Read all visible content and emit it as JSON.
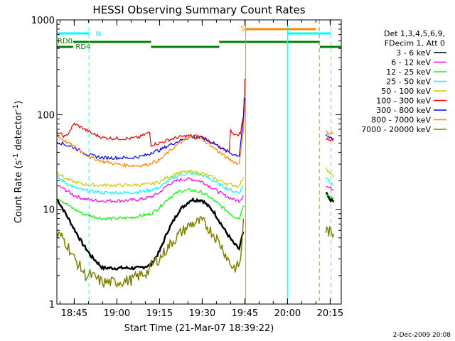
{
  "chart_data": {
    "type": "line",
    "title": "HESSI Observing Summary Count Rates",
    "xlabel": "Start Time (21-Mar-07 18:39:22)",
    "ylabel_main": "Count Rate (s",
    "ylabel_sup1": "-1",
    "ylabel_mid": " detector",
    "ylabel_sup2": "-1",
    "ylabel_end": ")",
    "x_range_min": [
      38.9,
      96.9
    ],
    "y_scale": "log",
    "ylim": [
      1,
      1000
    ],
    "x_ticks": [
      {
        "min": 45,
        "label": "18:45"
      },
      {
        "min": 60,
        "label": "19:00"
      },
      {
        "min": 75,
        "label": "19:15"
      },
      {
        "min": 90,
        "label": "19:30"
      },
      {
        "min": 105,
        "label": "19:45"
      },
      {
        "min": 120,
        "label": "20:00"
      },
      {
        "min": 135,
        "label": "20:15"
      }
    ],
    "y_ticks": [
      {
        "value": 1,
        "label": "1"
      },
      {
        "value": 10,
        "label": "10"
      },
      {
        "value": 100,
        "label": "100"
      },
      {
        "value": 1000,
        "label": "1000"
      }
    ],
    "legend": {
      "header": [
        "Det 1,3,4,5,6,9,",
        "FDecim 1, Att 0"
      ],
      "entries": [
        {
          "label": "3 - 6 keV",
          "color": "#000000"
        },
        {
          "label": "6 - 12 keV",
          "color": "#ff00ff"
        },
        {
          "label": "12 - 25 keV",
          "color": "#00ff00"
        },
        {
          "label": "25 - 50 keV",
          "color": "#00ffff"
        },
        {
          "label": "50 - 100 keV",
          "color": "#cccc00"
        },
        {
          "label": "100 - 300 keV",
          "color": "#ff0000"
        },
        {
          "label": "300 - 800 keV",
          "color": "#0000ff"
        },
        {
          "label": "800 - 7000 keV",
          "color": "#ff8800"
        },
        {
          "label": "7000 - 20000 keV",
          "color": "#808000"
        }
      ]
    },
    "flags": [
      {
        "label": "N",
        "color": "#00ffff",
        "intervals": [
          [
            38.9,
            50.2
          ],
          [
            120.0,
            135.3
          ]
        ]
      },
      {
        "label": "S",
        "color": "#ff8800",
        "intervals": [
          [
            105.3,
            130.0
          ]
        ]
      },
      {
        "label": "RD0",
        "color": "#008000",
        "intervals": [
          [
            38.9,
            44.6
          ],
          [
            135.3,
            139
          ]
        ]
      },
      {
        "label": "RD4",
        "color": "#008000",
        "intervals": [
          [
            44.6,
            72.0
          ],
          [
            72.0,
            96.0
          ],
          [
            96.0,
            131.4
          ],
          [
            131.4,
            139
          ]
        ]
      }
    ],
    "vertical_markers": [
      {
        "min": 50.2,
        "color": "#00ffff",
        "style": "dashed"
      },
      {
        "min": 105.3,
        "color": "#ff8800",
        "style": "solid"
      },
      {
        "min": 120.0,
        "color": "#00ffff",
        "style": "solid"
      },
      {
        "min": 131.2,
        "color": "#ff8800",
        "style": "dashed"
      },
      {
        "min": 135.3,
        "color": "#00ffff",
        "style": "dashed"
      }
    ],
    "series": [
      {
        "name": "3 - 6 keV",
        "color": "#000000",
        "x": [
          38.9,
          42,
          45,
          48,
          51,
          55,
          60,
          65,
          68,
          72,
          75,
          78,
          82,
          86,
          90,
          94,
          98,
          101,
          103,
          104.5
        ],
        "y": [
          13,
          9,
          6.2,
          4.3,
          3.2,
          2.4,
          2.4,
          2.4,
          2.4,
          2.6,
          3.6,
          6,
          9.8,
          12.6,
          12.5,
          9.5,
          6,
          4.4,
          3.8,
          5.8
        ]
      },
      {
        "name": "3 - 6 keV",
        "color": "#000000",
        "x": [
          133.5,
          134.5,
          135.5,
          136.3
        ],
        "y": [
          15,
          13,
          12.5,
          12
        ]
      },
      {
        "name": "6 - 12 keV",
        "color": "#ff00ff",
        "x": [
          38.9,
          42,
          45,
          48,
          51,
          55,
          60,
          65,
          68,
          72,
          75,
          78,
          82,
          86,
          90,
          94,
          98,
          101,
          103,
          104.5
        ],
        "y": [
          18,
          16,
          14,
          13,
          12.5,
          12.3,
          12.3,
          12.5,
          12.7,
          13.5,
          15,
          18.3,
          20.5,
          21,
          19.5,
          16.5,
          14,
          12.7,
          12.3,
          14
        ]
      },
      {
        "name": "6 - 12 keV",
        "color": "#ff00ff",
        "x": [
          133.5,
          134.5,
          135.5,
          136.3
        ],
        "y": [
          18,
          17,
          16.5,
          16
        ]
      },
      {
        "name": "12 - 25 keV",
        "color": "#00ff00",
        "x": [
          38.9,
          42,
          45,
          48,
          51,
          55,
          60,
          65,
          68,
          72,
          75,
          78,
          82,
          86,
          90,
          94,
          98,
          101,
          103,
          104.5
        ],
        "y": [
          13.5,
          11.5,
          10,
          9,
          8.5,
          8,
          8,
          8.2,
          8.5,
          9,
          10.5,
          13,
          15.5,
          16,
          15,
          12.5,
          10,
          8.5,
          8,
          11
        ]
      },
      {
        "name": "12 - 25 keV",
        "color": "#00ff00",
        "x": [
          133.5,
          134.5,
          135.5,
          136.3
        ],
        "y": [
          15,
          14,
          13.5,
          13
        ]
      },
      {
        "name": "25 - 50 keV",
        "color": "#00ffff",
        "x": [
          38.9,
          42,
          45,
          48,
          51,
          55,
          60,
          65,
          68,
          72,
          75,
          78,
          82,
          86,
          90,
          94,
          98,
          101,
          103,
          104.5
        ],
        "y": [
          22,
          19,
          17,
          16,
          15.5,
          15,
          15,
          15,
          15.3,
          16,
          17,
          20,
          23,
          24,
          23,
          20,
          17,
          15.5,
          15,
          18
        ]
      },
      {
        "name": "25 - 50 keV",
        "color": "#00ffff",
        "x": [
          133.5,
          134.5,
          135.5,
          136.3
        ],
        "y": [
          22,
          20,
          19,
          18
        ]
      },
      {
        "name": "50 - 100 keV",
        "color": "#cccc00",
        "x": [
          38.9,
          42,
          45,
          48,
          51,
          55,
          60,
          65,
          68,
          72,
          75,
          78,
          82,
          86,
          90,
          94,
          98,
          101,
          103,
          104.5
        ],
        "y": [
          25,
          21,
          19.5,
          18.5,
          18,
          18,
          18,
          18,
          18.2,
          18.5,
          19.5,
          22,
          24.5,
          25,
          24,
          21.5,
          19,
          18,
          17.5,
          22
        ]
      },
      {
        "name": "50 - 100 keV",
        "color": "#cccc00",
        "x": [
          133.5,
          134.5,
          135.5,
          136.3
        ],
        "y": [
          28,
          25,
          23,
          22
        ]
      },
      {
        "name": "100 - 300 keV",
        "color": "#ff0000",
        "x": [
          38.9,
          42,
          45,
          48,
          51,
          55,
          60,
          65,
          68,
          71.5,
          72,
          75,
          78,
          82,
          86,
          90,
          94,
          98,
          99.5,
          100,
          102,
          103.5,
          104.5,
          105
        ],
        "y": [
          65,
          58,
          80,
          72,
          64,
          57,
          56,
          56,
          58,
          65,
          48,
          50,
          54,
          58,
          60,
          58,
          50,
          41,
          42,
          68,
          60,
          64,
          100,
          240
        ]
      },
      {
        "name": "100 - 300 keV",
        "color": "#ff0000",
        "x": [
          133.5,
          134.5,
          135.5,
          136.3
        ],
        "y": [
          55,
          55,
          54,
          53
        ]
      },
      {
        "name": "300 - 800 keV",
        "color": "#0000ff",
        "x": [
          38.9,
          42,
          45,
          48,
          51,
          55,
          60,
          65,
          68,
          71.5,
          72,
          75,
          78,
          82,
          86,
          90,
          94,
          98,
          101,
          103,
          104.5,
          105
        ],
        "y": [
          52,
          48,
          45,
          40,
          37,
          35,
          35,
          35,
          36,
          38,
          40,
          42,
          47,
          53,
          58,
          57,
          50,
          42,
          38,
          37,
          90,
          150
        ]
      },
      {
        "name": "300 - 800 keV",
        "color": "#0000ff",
        "x": [
          133.5,
          134.5,
          135.5,
          136.3
        ],
        "y": [
          60,
          58,
          57,
          56
        ]
      },
      {
        "name": "800 - 7000 keV",
        "color": "#ff8800",
        "x": [
          38.9,
          42,
          45,
          48,
          51,
          55,
          60,
          65,
          68,
          71.5,
          72,
          75,
          78,
          82,
          86,
          90,
          94,
          98,
          101,
          103,
          104.5,
          105
        ],
        "y": [
          60,
          52,
          46,
          40,
          35,
          32,
          30,
          29,
          29,
          30,
          31,
          33,
          40,
          50,
          58,
          55,
          45,
          36,
          32,
          30,
          70,
          120
        ]
      },
      {
        "name": "800 - 7000 keV",
        "color": "#ff8800",
        "x": [
          133.5,
          134.5,
          135.5,
          136.3
        ],
        "y": [
          65,
          64,
          64,
          63
        ]
      },
      {
        "name": "7000 - 20000 keV",
        "color": "#808000",
        "x": [
          38.9,
          41,
          43,
          45,
          47,
          49,
          51,
          55,
          60,
          65,
          68,
          71,
          73,
          75,
          78,
          82,
          86,
          90,
          94,
          97,
          99,
          100.5,
          102,
          103.5,
          104.5
        ],
        "y": [
          5.5,
          5,
          4,
          3,
          2.5,
          2,
          2,
          1.7,
          1.7,
          1.8,
          2,
          2.2,
          2.8,
          3,
          4,
          5.5,
          7,
          7.5,
          5.5,
          4,
          3,
          2.5,
          2.4,
          2.8,
          8
        ]
      },
      {
        "name": "7000 - 20000 keV",
        "color": "#808000",
        "x": [
          133.5,
          134.5,
          135.5,
          136.3
        ],
        "y": [
          6,
          5.8,
          5.5,
          5.5
        ]
      }
    ]
  },
  "footer": {
    "timestamp": "2-Dec-2009 20:08"
  }
}
